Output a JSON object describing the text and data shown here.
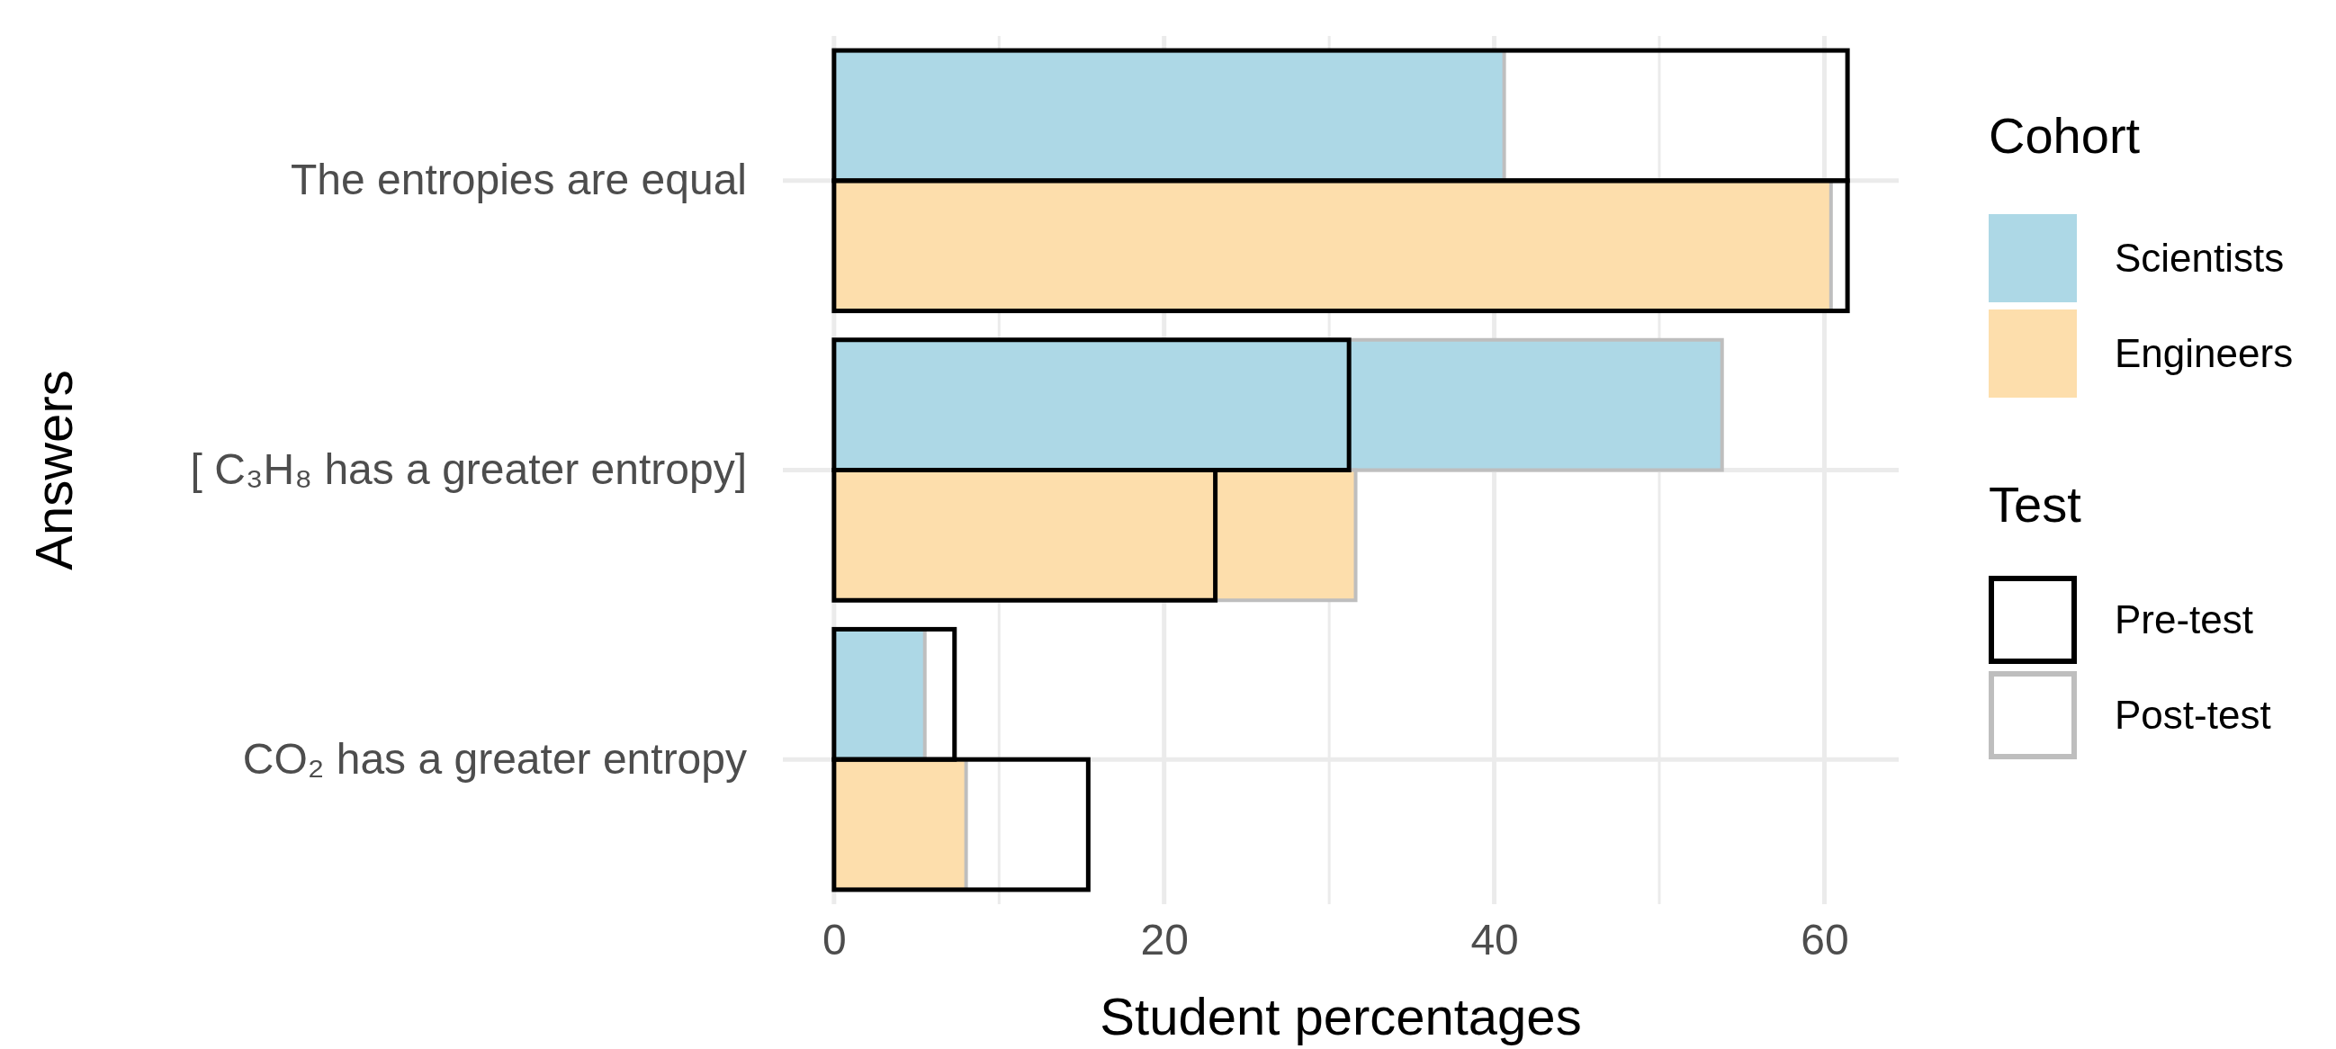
{
  "chart_data": {
    "type": "bar",
    "orientation": "horizontal",
    "xlabel": "Student percentages",
    "ylabel": "Answers",
    "legend_title": "Cohort",
    "legend": "right",
    "categories": [
      "The entropies are equal",
      "[ C₃H₈ has a greater entropy]",
      "CO₂ has a greater entropy"
    ],
    "series": [
      {
        "name": "Scientists",
        "color": "#add8e6",
        "values": [
          40.6,
          53.8,
          5.5
        ]
      },
      {
        "name": "Engineers",
        "color": "#fddeac",
        "values": [
          60.4,
          31.6,
          8.0
        ]
      },
      {
        "name": "Pre-test",
        "color": "#000000",
        "values": [
          61.4,
          31.2,
          7.3
        ]
      },
      {
        "color": "#000000",
        "values": [
          61.4,
          23.1,
          15.4
        ]
      }
    ],
    "xlim": [
      -3.1,
      64.5
    ],
    "xticks": [
      0,
      {
        "value": 10,
        "label": null
      },
      20,
      {
        "value": 30,
        "label": null
      },
      40,
      {
        "value": 50,
        "label": null
      },
      60
    ],
    "grid": true,
    "annotations": [
      "Test",
      "Post-test"
    ]
  }
}
